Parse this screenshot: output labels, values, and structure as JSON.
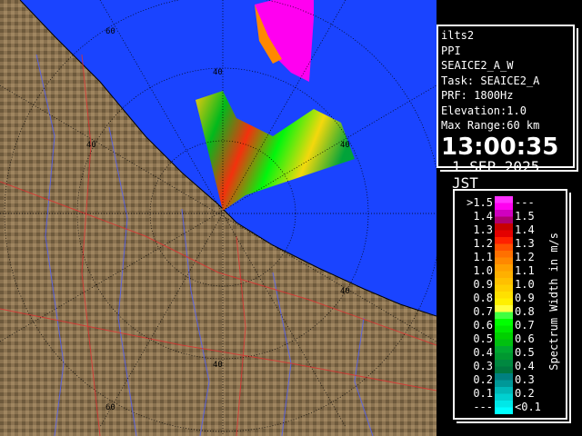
{
  "info": {
    "radar": "ilts2",
    "mode": "PPI",
    "product": "SEAICE2_A_W",
    "task": "Task: SEAICE2_A",
    "prf": "PRF: 1800Hz",
    "elevation": "Elevation:1.0",
    "max_range": "Max Range:60 km",
    "time": "13:00:35",
    "date": "1 SEP 2025 JST"
  },
  "legend": {
    "unit": "Spectrum Width in m/s",
    "rows": [
      {
        "left": ">1.5",
        "right": "---",
        "c1": "#ff30ff",
        "c2": "#ff00f0"
      },
      {
        "left": "1.4",
        "right": "1.5",
        "c1": "#d000c0",
        "c2": "#b00070"
      },
      {
        "left": "1.3",
        "right": "1.4",
        "c1": "#c80000",
        "c2": "#e40000"
      },
      {
        "left": "1.2",
        "right": "1.3",
        "c1": "#ff2000",
        "c2": "#ff5000"
      },
      {
        "left": "1.1",
        "right": "1.2",
        "c1": "#ff7000",
        "c2": "#ff8800"
      },
      {
        "left": "1.0",
        "right": "1.1",
        "c1": "#ffa000",
        "c2": "#ffb000"
      },
      {
        "left": "0.9",
        "right": "1.0",
        "c1": "#ffc000",
        "c2": "#ffd000"
      },
      {
        "left": "0.8",
        "right": "0.9",
        "c1": "#ffe000",
        "c2": "#fff000"
      },
      {
        "left": "0.7",
        "right": "0.8",
        "c1": "#ffff40",
        "c2": "#40ff40"
      },
      {
        "left": "0.6",
        "right": "0.7",
        "c1": "#00ff00",
        "c2": "#00e800"
      },
      {
        "left": "0.5",
        "right": "0.6",
        "c1": "#00d000",
        "c2": "#00c010"
      },
      {
        "left": "0.4",
        "right": "0.5",
        "c1": "#00a830",
        "c2": "#009830"
      },
      {
        "left": "0.3",
        "right": "0.4",
        "c1": "#008840",
        "c2": "#007840"
      },
      {
        "left": "0.2",
        "right": "0.3",
        "c1": "#008080",
        "c2": "#009898"
      },
      {
        "left": "0.1",
        "right": "0.2",
        "c1": "#00b8b8",
        "c2": "#00d0d0"
      },
      {
        "left": "---",
        "right": "<0.1",
        "c1": "#00e8e8",
        "c2": "#00ffff"
      }
    ]
  },
  "map": {
    "sea_color": "#1a44ff",
    "land_color": "#8a7250",
    "ring_labels": {
      "r40_top": "40",
      "r40_bottom": "40",
      "r40_left": "40",
      "r40_right": "40",
      "r40_right2": "40",
      "r60_top": "60",
      "r60_bottom": "60"
    }
  }
}
